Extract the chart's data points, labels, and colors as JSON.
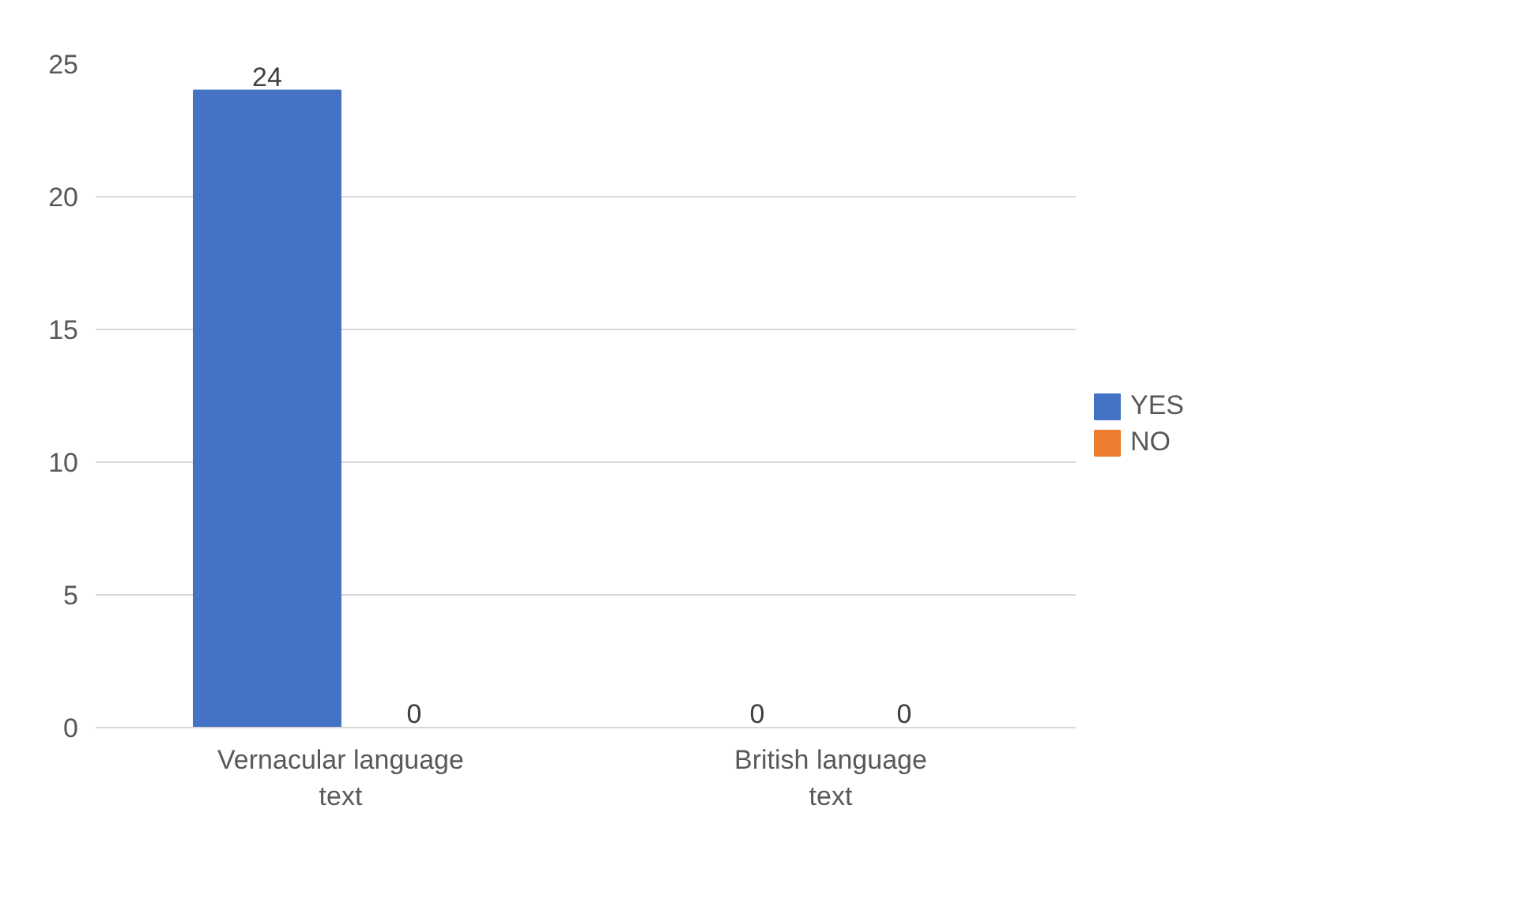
{
  "chart_data": {
    "type": "bar",
    "categories": [
      "Vernacular language text",
      "British language text"
    ],
    "series": [
      {
        "name": "YES",
        "color": "#4472c4",
        "values": [
          24,
          0
        ]
      },
      {
        "name": "NO",
        "color": "#ed7d31",
        "values": [
          0,
          0
        ]
      }
    ],
    "ylim": [
      0,
      25
    ],
    "yticks": [
      0,
      5,
      10,
      15,
      20,
      25
    ],
    "grid": "y",
    "legend": "right",
    "data_labels": true
  }
}
